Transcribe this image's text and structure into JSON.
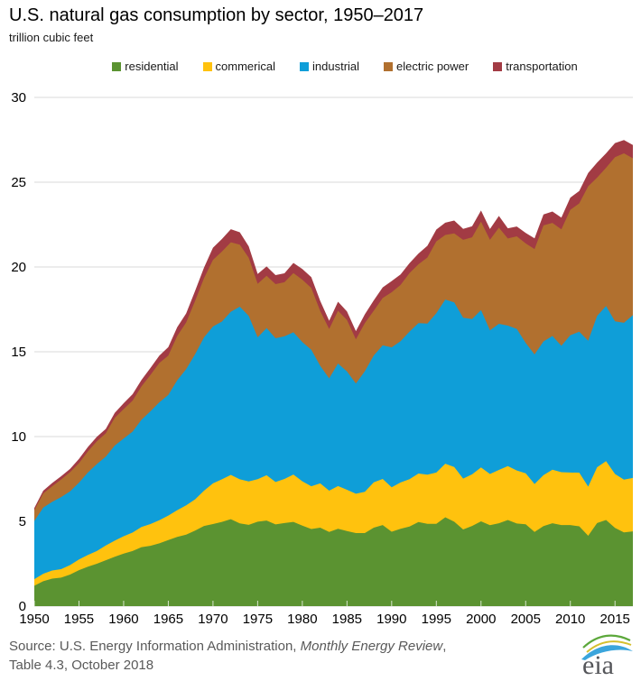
{
  "title": "U.S. natural gas consumption by sector, 1950–2017",
  "subtitle": "trillion cubic feet",
  "source": {
    "prefix": "Source: U.S. Energy Information Administration, ",
    "italic": "Monthly Energy Review",
    "suffix": ",",
    "line2": "Table 4.3, October 2018"
  },
  "logo": {
    "text": "eia"
  },
  "colors": {
    "residential": "#5B9331",
    "commerical": "#FFC20E",
    "industrial": "#0F9ED8",
    "electric_power": "#B1702F",
    "transportation": "#A23B44",
    "gridline": "#D9D9D9",
    "source_text": "#595959"
  },
  "chart_data": {
    "type": "area",
    "stacked": true,
    "title": "U.S. natural gas consumption by sector, 1950–2017",
    "ylabel": "trillion cubic feet",
    "xlabel": "",
    "grid": "horizontal",
    "legend_position": "top",
    "ylim": [
      0,
      30
    ],
    "yticks": [
      0,
      5,
      10,
      15,
      20,
      25,
      30
    ],
    "xticks": [
      1950,
      1955,
      1960,
      1965,
      1970,
      1975,
      1980,
      1985,
      1990,
      1995,
      2000,
      2005,
      2010,
      2015
    ],
    "x": [
      1950,
      1951,
      1952,
      1953,
      1954,
      1955,
      1956,
      1957,
      1958,
      1959,
      1960,
      1961,
      1962,
      1963,
      1964,
      1965,
      1966,
      1967,
      1968,
      1969,
      1970,
      1971,
      1972,
      1973,
      1974,
      1975,
      1976,
      1977,
      1978,
      1979,
      1980,
      1981,
      1982,
      1983,
      1984,
      1985,
      1986,
      1987,
      1988,
      1989,
      1990,
      1991,
      1992,
      1993,
      1994,
      1995,
      1996,
      1997,
      1998,
      1999,
      2000,
      2001,
      2002,
      2003,
      2004,
      2005,
      2006,
      2007,
      2008,
      2009,
      2010,
      2011,
      2012,
      2013,
      2014,
      2015,
      2016,
      2017
    ],
    "series": [
      {
        "name": "residential",
        "color": "#5B9331",
        "values": [
          1.2,
          1.47,
          1.62,
          1.68,
          1.86,
          2.12,
          2.33,
          2.5,
          2.71,
          2.91,
          3.1,
          3.25,
          3.48,
          3.56,
          3.7,
          3.9,
          4.08,
          4.22,
          4.45,
          4.73,
          4.84,
          4.97,
          5.13,
          4.88,
          4.79,
          4.98,
          5.05,
          4.82,
          4.9,
          4.97,
          4.75,
          4.55,
          4.63,
          4.38,
          4.56,
          4.43,
          4.31,
          4.31,
          4.63,
          4.78,
          4.39,
          4.56,
          4.69,
          4.96,
          4.85,
          4.85,
          5.24,
          4.98,
          4.52,
          4.73,
          5.0,
          4.77,
          4.89,
          5.08,
          4.87,
          4.83,
          4.37,
          4.72,
          4.89,
          4.78,
          4.78,
          4.71,
          4.15,
          4.9,
          5.08,
          4.61,
          4.35,
          4.41
        ]
      },
      {
        "name": "commerical",
        "color": "#FFC20E",
        "values": [
          0.39,
          0.44,
          0.48,
          0.5,
          0.56,
          0.63,
          0.69,
          0.75,
          0.87,
          0.95,
          1.02,
          1.09,
          1.19,
          1.28,
          1.37,
          1.44,
          1.58,
          1.72,
          1.85,
          2.08,
          2.4,
          2.51,
          2.61,
          2.6,
          2.56,
          2.51,
          2.67,
          2.5,
          2.6,
          2.79,
          2.61,
          2.52,
          2.61,
          2.43,
          2.52,
          2.43,
          2.32,
          2.43,
          2.67,
          2.72,
          2.62,
          2.73,
          2.8,
          2.86,
          2.9,
          3.03,
          3.16,
          3.22,
          3.0,
          3.04,
          3.18,
          3.02,
          3.14,
          3.18,
          3.13,
          3.0,
          2.83,
          3.01,
          3.15,
          3.12,
          3.1,
          3.16,
          2.9,
          3.29,
          3.47,
          3.18,
          3.11,
          3.15
        ]
      },
      {
        "name": "industrial",
        "color": "#0F9ED8",
        "values": [
          3.43,
          3.9,
          4.05,
          4.25,
          4.35,
          4.53,
          4.87,
          5.13,
          5.24,
          5.61,
          5.77,
          5.95,
          6.32,
          6.65,
          6.95,
          7.11,
          7.66,
          8.04,
          8.55,
          9.04,
          9.25,
          9.3,
          9.62,
          10.18,
          9.76,
          8.36,
          8.68,
          8.48,
          8.41,
          8.39,
          8.21,
          8.05,
          6.93,
          6.62,
          7.23,
          6.98,
          6.5,
          7.11,
          7.48,
          7.88,
          8.25,
          8.33,
          8.7,
          8.87,
          8.91,
          9.39,
          9.68,
          9.71,
          9.49,
          9.16,
          9.28,
          8.47,
          8.62,
          8.28,
          8.35,
          7.69,
          7.64,
          7.88,
          7.89,
          7.45,
          8.1,
          8.31,
          8.6,
          8.92,
          9.15,
          9.0,
          9.25,
          9.6
        ]
      },
      {
        "name": "electric power",
        "color": "#B1702F",
        "values": [
          0.63,
          0.84,
          0.92,
          1.04,
          1.13,
          1.15,
          1.24,
          1.34,
          1.37,
          1.63,
          1.73,
          1.83,
          1.97,
          2.14,
          2.32,
          2.32,
          2.61,
          2.75,
          3.15,
          3.49,
          3.93,
          4.13,
          4.1,
          3.66,
          3.44,
          3.16,
          3.08,
          3.19,
          3.19,
          3.49,
          3.68,
          3.64,
          3.23,
          2.91,
          3.11,
          3.04,
          2.6,
          2.84,
          2.64,
          2.79,
          3.25,
          3.32,
          3.45,
          3.47,
          3.9,
          4.24,
          3.81,
          4.07,
          4.59,
          4.82,
          5.21,
          5.34,
          5.67,
          5.14,
          5.46,
          5.87,
          6.22,
          6.84,
          6.67,
          6.87,
          7.39,
          7.57,
          9.11,
          8.16,
          8.15,
          9.69,
          9.99,
          9.25
        ]
      },
      {
        "name": "transportation",
        "color": "#A23B44",
        "values": [
          0.13,
          0.16,
          0.19,
          0.19,
          0.19,
          0.25,
          0.26,
          0.27,
          0.26,
          0.3,
          0.35,
          0.38,
          0.38,
          0.41,
          0.43,
          0.5,
          0.52,
          0.53,
          0.59,
          0.63,
          0.72,
          0.74,
          0.77,
          0.73,
          0.67,
          0.58,
          0.55,
          0.53,
          0.53,
          0.6,
          0.63,
          0.64,
          0.6,
          0.49,
          0.53,
          0.5,
          0.49,
          0.52,
          0.61,
          0.63,
          0.66,
          0.62,
          0.59,
          0.63,
          0.69,
          0.7,
          0.72,
          0.76,
          0.65,
          0.65,
          0.66,
          0.64,
          0.69,
          0.6,
          0.58,
          0.62,
          0.63,
          0.65,
          0.67,
          0.69,
          0.72,
          0.73,
          0.78,
          0.89,
          0.85,
          0.83,
          0.79,
          0.78
        ]
      }
    ]
  }
}
